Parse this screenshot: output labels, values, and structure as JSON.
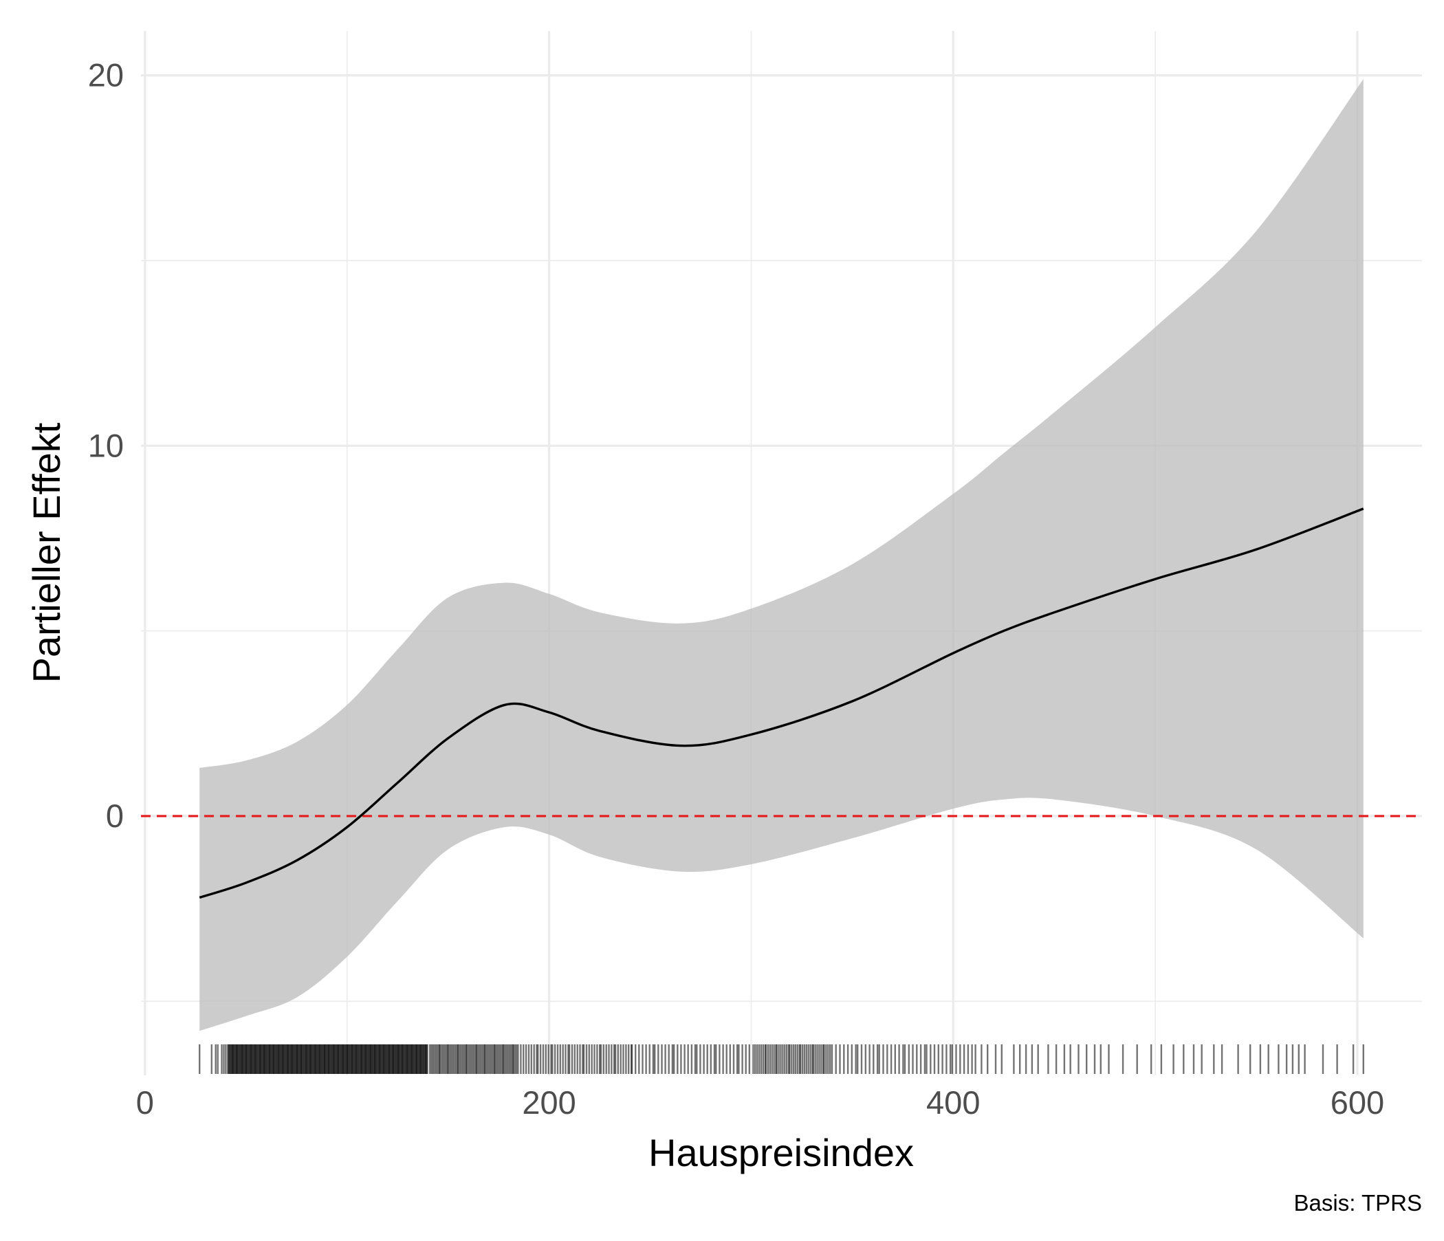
{
  "chart_data": {
    "type": "line",
    "xlabel": "Hauspreisindex",
    "ylabel": "Partieller Effekt",
    "caption": "Basis: TPRS",
    "xlim": [
      -2,
      632
    ],
    "ylim": [
      -7,
      21.2
    ],
    "x_ticks": [
      0,
      200,
      400,
      600
    ],
    "x_tick_labels": [
      "0",
      "200",
      "400",
      "600"
    ],
    "x_minor_ticks": [
      100,
      300,
      500
    ],
    "y_ticks": [
      0,
      10,
      20
    ],
    "y_tick_labels": [
      "0",
      "10",
      "20"
    ],
    "y_minor_ticks": [
      -5,
      5,
      15
    ],
    "grid": true,
    "reference_line": {
      "y": 0,
      "style": "dashed",
      "color": "#e41a1c"
    },
    "series": [
      {
        "x": [
          27,
          50,
          75,
          100,
          125,
          150,
          178,
          200,
          225,
          265,
          300,
          350,
          400,
          425,
          450,
          500,
          550,
          603
        ],
        "y": [
          -2.2,
          -1.8,
          -1.2,
          -0.3,
          0.9,
          2.1,
          3.0,
          2.8,
          2.3,
          1.9,
          2.2,
          3.1,
          4.4,
          5.0,
          5.5,
          6.4,
          7.2,
          8.3
        ],
        "color": "#000000"
      }
    ],
    "confidence_band": {
      "x": [
        27,
        50,
        75,
        100,
        125,
        150,
        178,
        200,
        225,
        265,
        300,
        350,
        400,
        425,
        450,
        500,
        550,
        603
      ],
      "lower": [
        -5.8,
        -5.4,
        -4.9,
        -3.8,
        -2.3,
        -0.9,
        -0.3,
        -0.5,
        -1.1,
        -1.5,
        -1.3,
        -0.6,
        0.2,
        0.45,
        0.45,
        0.0,
        -0.9,
        -3.3
      ],
      "upper": [
        1.3,
        1.5,
        2.0,
        3.0,
        4.5,
        5.9,
        6.3,
        6.0,
        5.5,
        5.2,
        5.6,
        6.8,
        8.7,
        9.8,
        10.9,
        13.2,
        15.8,
        19.9
      ],
      "color": "#bebebe"
    },
    "rug": {
      "color": "#000000",
      "dense_ranges": [
        [
          41,
          140
        ],
        [
          141,
          185
        ],
        [
          186,
          240
        ],
        [
          241,
          300
        ],
        [
          301,
          339
        ],
        [
          340,
          410
        ]
      ],
      "dense_spacing": [
        0.35,
        0.7,
        1.2,
        1.6,
        0.9,
        1.8
      ],
      "sparse_x": [
        27,
        33,
        35,
        36,
        38,
        39,
        40,
        411,
        414,
        417,
        421,
        424,
        430,
        433,
        436,
        439,
        442,
        447,
        451,
        455,
        458,
        462,
        466,
        470,
        473,
        477,
        484,
        491,
        498,
        503,
        509,
        514,
        519,
        523,
        529,
        533,
        541,
        547,
        552,
        556,
        561,
        565,
        568,
        571,
        574,
        583,
        590,
        598,
        603
      ]
    }
  }
}
